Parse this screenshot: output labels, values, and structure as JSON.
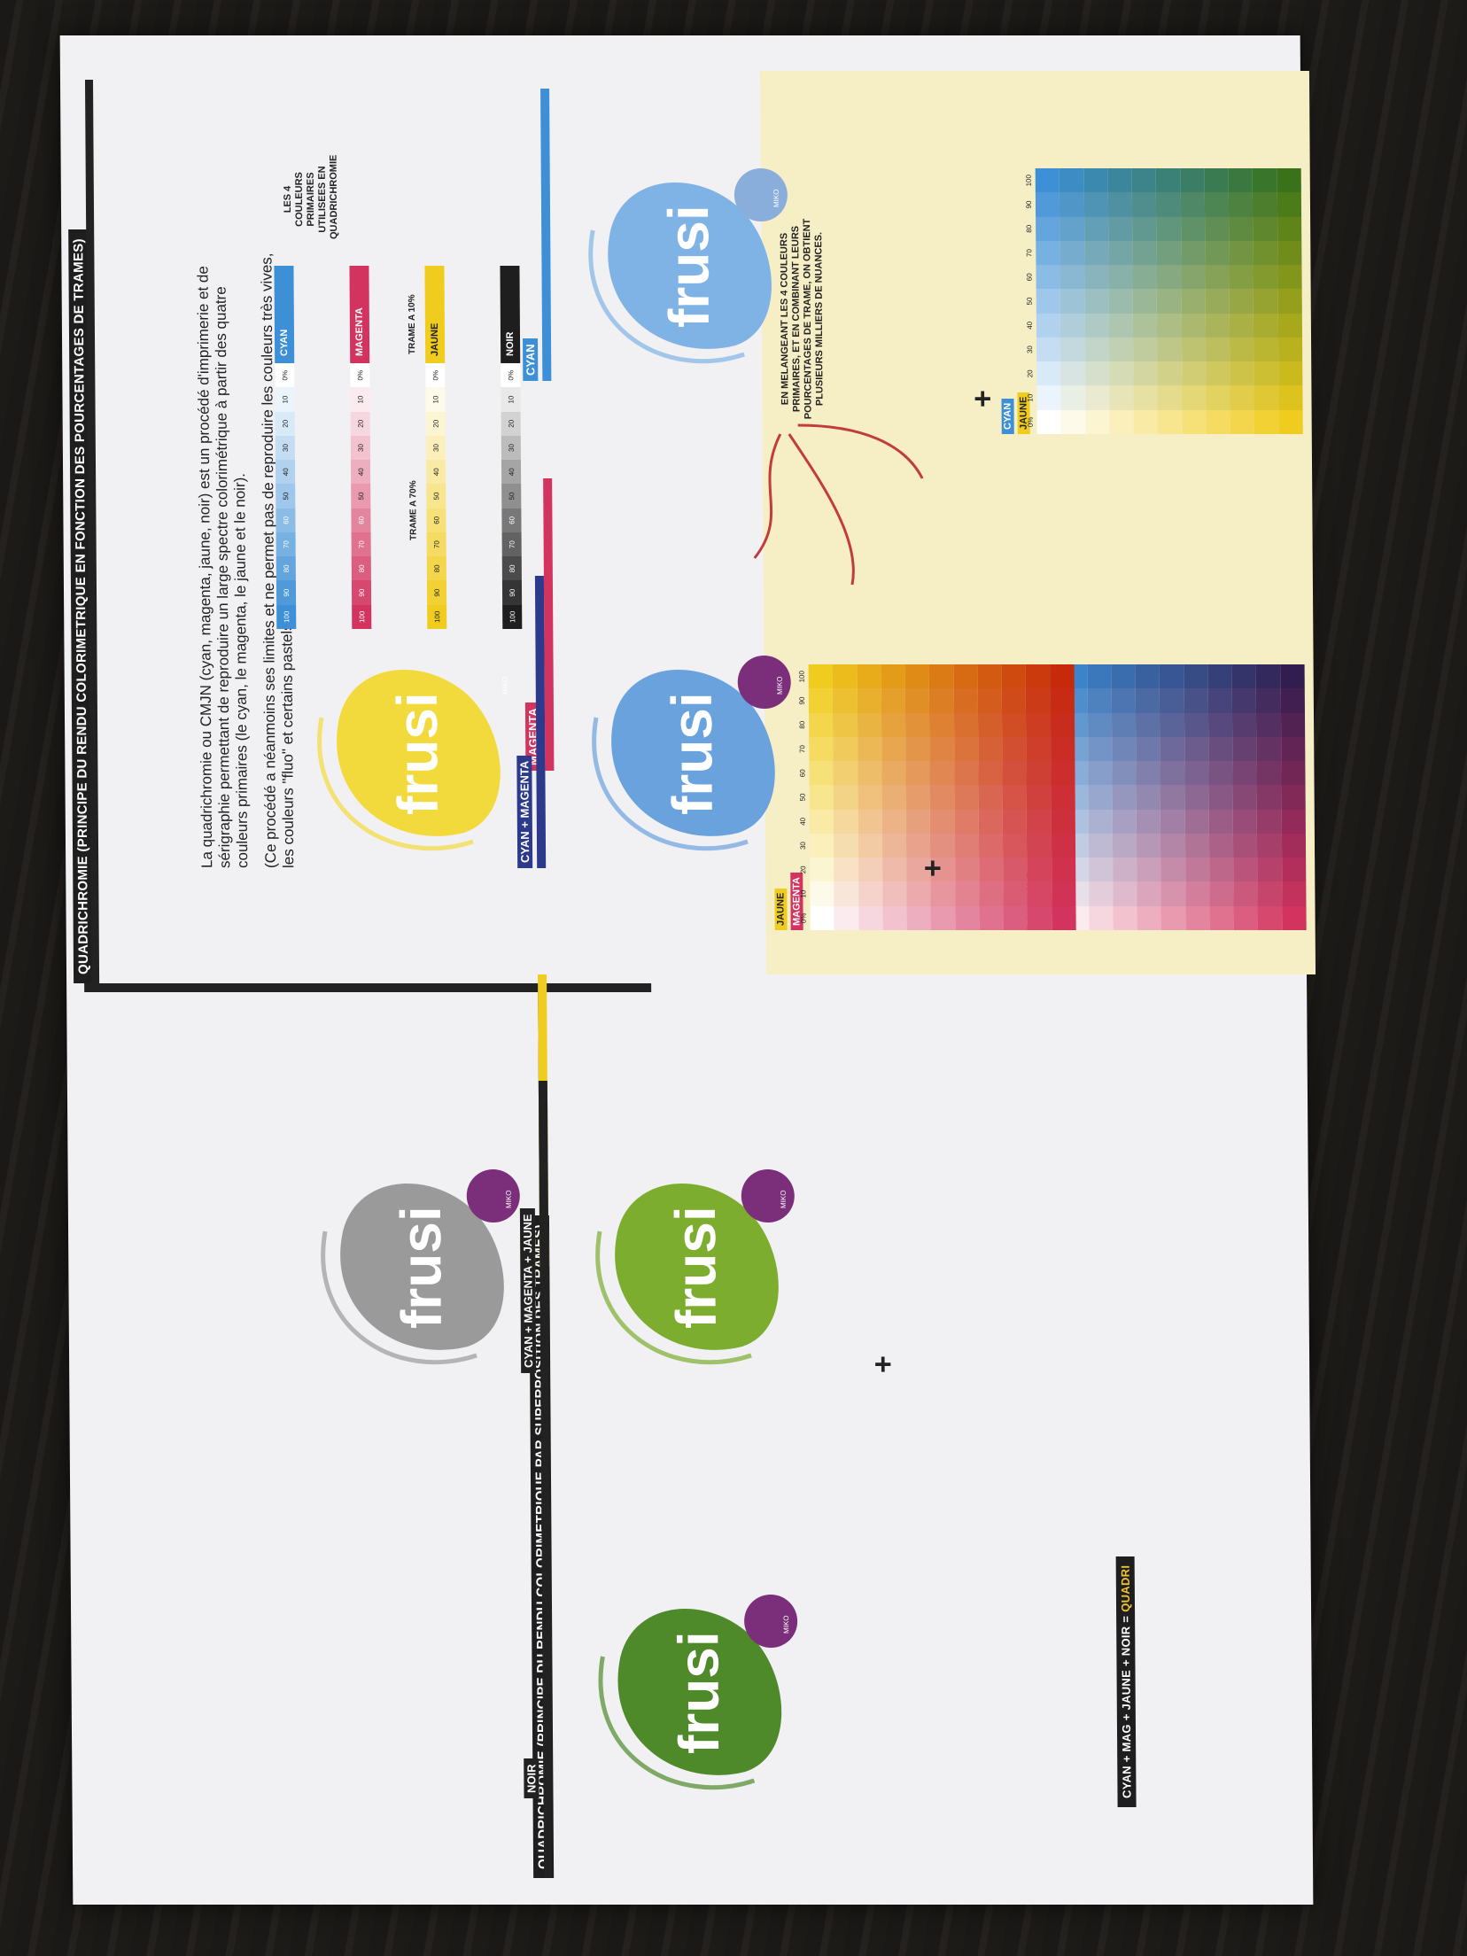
{
  "sheet": {
    "title_top": "QUADRICHROMIE (PRINCIPE DU RENDU COLORIMETRIQUE EN FONCTION DES POURCENTAGES DE TRAMES)",
    "title_bottom": "QUADRICHROMIE (PRINCIPE DU RENDU COLORIMETRIQUE PAR SUPERPOSITION DES TRAMES)",
    "intro_paragraph_1": "La quadrichromie ou CMJN (cyan, magenta, jaune, noir) est un procédé d'imprimerie et de sérigraphie permettant de reproduire un large spectre colorimétrique à partir des quatre couleurs primaires (le cyan, le magenta, le jaune et le noir).",
    "intro_paragraph_2": "(Ce procédé a néanmoins ses limites et ne permet pas de reproduire les couleurs très vives, les couleurs \"fluo\" et certains pastels).",
    "primaries_caption": "LES 4 COULEURS PRIMAIRES UTILISEES EN QUADRICHROMIE",
    "trame_10": "TRAME A 10%",
    "trame_70": "TRAME A 70%",
    "mixing_note": "EN MELANGEANT LES 4 COULEURS PRIMAIRES, ET EN COMBINANT LEURS POURCENTAGES DE TRAME, ON OBTIENT PLUSIEURS MILLIERS DE NUANCES.",
    "final_label_prefix": "CYAN + MAG + JAUNE + NOIR = ",
    "final_label_word": "QUADRI"
  },
  "ramps": [
    {
      "name": "CYAN",
      "color": "#3d8fd6",
      "ticks": [
        "0%",
        "10",
        "20",
        "30",
        "40",
        "50",
        "60",
        "70",
        "80",
        "90",
        "100"
      ]
    },
    {
      "name": "MAGENTA",
      "color": "#d2345f",
      "ticks": [
        "0%",
        "10",
        "20",
        "30",
        "40",
        "50",
        "60",
        "70",
        "80",
        "90",
        "100"
      ]
    },
    {
      "name": "JAUNE",
      "color": "#f0cc1e",
      "ticks": [
        "0%",
        "10",
        "20",
        "30",
        "40",
        "50",
        "60",
        "70",
        "80",
        "90",
        "100"
      ]
    },
    {
      "name": "NOIR",
      "color": "#1e1e1e",
      "ticks": [
        "0%",
        "10",
        "20",
        "30",
        "40",
        "50",
        "60",
        "70",
        "80",
        "90",
        "100"
      ]
    }
  ],
  "grids": [
    {
      "row_label": "CYAN",
      "col_label": "JAUNE",
      "ticks": [
        "0%",
        "10",
        "20",
        "30",
        "40",
        "50",
        "60",
        "70",
        "80",
        "90",
        "100"
      ]
    },
    {
      "row_label": "CYAN",
      "col_label": "MAGENTA",
      "ticks": [
        "0%",
        "10",
        "20",
        "30",
        "40",
        "50",
        "60",
        "70",
        "80",
        "90",
        "100"
      ]
    },
    {
      "row_label": "JAUNE",
      "col_label": "MAGENTA",
      "ticks": [
        "0%",
        "10",
        "20",
        "30",
        "40",
        "50",
        "60",
        "70",
        "80",
        "90",
        "100"
      ]
    }
  ],
  "logos": {
    "brand_text": "frusi",
    "badge_text": "MIKO",
    "steps": [
      {
        "label": "CYAN",
        "color": "#3d8fd6"
      },
      {
        "label": "MAGENTA",
        "color": "#d2345f"
      },
      {
        "label": "CYAN + MAGENTA",
        "color": "#2d3a8c"
      },
      {
        "label": "JAUNE",
        "color": "#f0cc1e"
      },
      {
        "label": "CYAN + MAGENTA + JAUNE",
        "color": "#222222"
      },
      {
        "label": "NOIR",
        "color": "#222222"
      }
    ]
  }
}
